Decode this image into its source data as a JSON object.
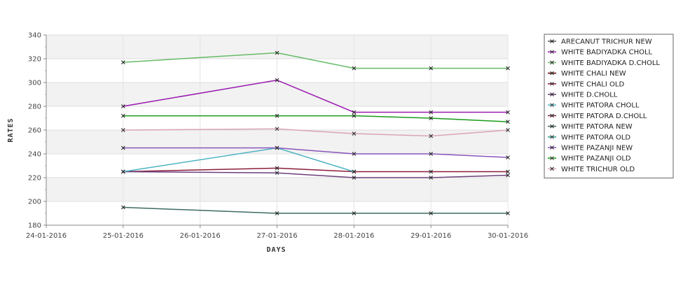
{
  "chart_data": {
    "type": "line",
    "xlabel": "DAYS",
    "ylabel": "RATES",
    "x_ticks": [
      "24-01-2016",
      "25-01-2016",
      "26-01-2016",
      "27-01-2016",
      "28-01-2016",
      "29-01-2016",
      "30-01-2016"
    ],
    "x_points": [
      "25-01-2016",
      "27-01-2016",
      "28-01-2016",
      "29-01-2016",
      "30-01-2016"
    ],
    "ylim": [
      180,
      340
    ],
    "y_ticks": [
      180,
      200,
      220,
      240,
      260,
      280,
      300,
      320,
      340
    ],
    "grid": true,
    "legend_position": "right",
    "series": [
      {
        "name": "ARECANUT TRICHUR NEW",
        "color": "#555555",
        "values": [
          null,
          null,
          null,
          null,
          null
        ]
      },
      {
        "name": "WHITE BADIYADKA CHOLL",
        "color": "#9a1ab0",
        "values": [
          280,
          302,
          275,
          275,
          275
        ]
      },
      {
        "name": "WHITE BADIYADKA D.CHOLL",
        "color": "#66bb66",
        "values": [
          317,
          325,
          312,
          312,
          312
        ]
      },
      {
        "name": "WHITE CHALI NEW",
        "color": "#5a0000",
        "values": [
          null,
          null,
          null,
          null,
          null
        ]
      },
      {
        "name": "WHITE CHALI OLD",
        "color": "#8a1d3a",
        "values": [
          225,
          228,
          225,
          225,
          225
        ]
      },
      {
        "name": "WHITE D.CHOLL",
        "color": "#6b3f7a",
        "values": [
          225,
          224,
          220,
          220,
          222
        ]
      },
      {
        "name": "WHITE PATORA CHOLL",
        "color": "#4db3c2",
        "values": [
          225,
          245,
          225,
          null,
          null
        ]
      },
      {
        "name": "WHITE PATORA D.CHOLL",
        "color": "#7a1f4a",
        "values": [
          null,
          null,
          null,
          null,
          null
        ]
      },
      {
        "name": "WHITE PATORA NEW",
        "color": "#3d6b63",
        "values": [
          195,
          190,
          190,
          190,
          190
        ]
      },
      {
        "name": "WHITE PATORA OLD",
        "color": "#2a9a8a",
        "values": [
          null,
          null,
          null,
          null,
          null
        ]
      },
      {
        "name": "WHITE PAZANJI NEW",
        "color": "#8855bb",
        "values": [
          245,
          245,
          240,
          240,
          237
        ]
      },
      {
        "name": "WHITE PAZANJI OLD",
        "color": "#1a9a1a",
        "values": [
          272,
          272,
          272,
          270,
          267
        ]
      },
      {
        "name": "WHITE TRICHUR OLD",
        "color": "#d9a5b3",
        "values": [
          260,
          261,
          257,
          255,
          260
        ]
      }
    ]
  }
}
